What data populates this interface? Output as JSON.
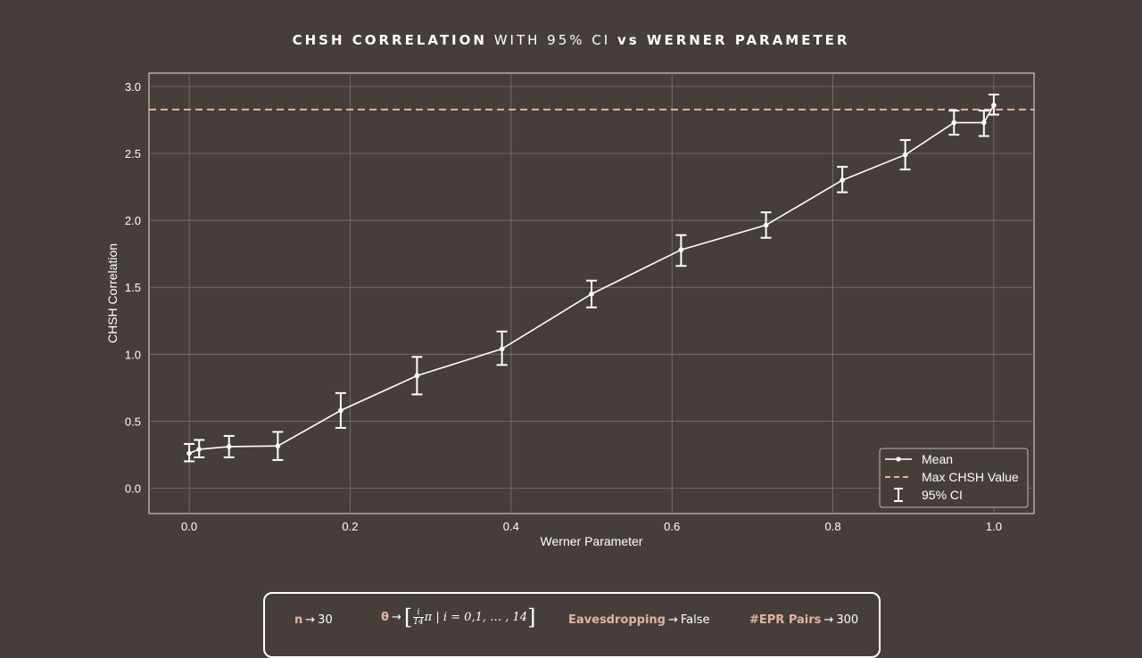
{
  "title": {
    "part1": "CHSH CORRELATION",
    "part2": " WITH 95% CI ",
    "part3": "vs",
    "part4": " WERNER PARAMETER"
  },
  "chart_data": {
    "type": "line",
    "xlabel": "Werner Parameter",
    "ylabel": "CHSH Correlation",
    "xlim": [
      -0.05,
      1.05
    ],
    "ylim": [
      -0.19,
      3.1
    ],
    "xticks": [
      "0.0",
      "0.2",
      "0.4",
      "0.6",
      "0.8",
      "1.0"
    ],
    "xtick_values": [
      0.0,
      0.2,
      0.4,
      0.6,
      0.8,
      1.0
    ],
    "yticks": [
      "0.0",
      "0.5",
      "1.0",
      "1.5",
      "2.0",
      "2.5",
      "3.0"
    ],
    "ytick_values": [
      0.0,
      0.5,
      1.0,
      1.5,
      2.0,
      2.5,
      3.0
    ],
    "grid": true,
    "legend_position": "bottom-right",
    "legend": [
      "Mean",
      "Max CHSH Value",
      "95% CI"
    ],
    "series": [
      {
        "name": "Mean",
        "color": "#ffffff",
        "x": [
          0.0,
          0.0123,
          0.0495,
          0.1101,
          0.1883,
          0.2831,
          0.3887,
          0.5,
          0.6113,
          0.7169,
          0.8117,
          0.8899,
          0.9505,
          0.9877,
          1.0
        ],
        "y": [
          0.26,
          0.29,
          0.31,
          0.315,
          0.58,
          0.84,
          1.04,
          1.45,
          1.78,
          1.965,
          2.3,
          2.49,
          2.73,
          2.73,
          2.86
        ],
        "ci_low": [
          0.2,
          0.23,
          0.23,
          0.21,
          0.45,
          0.7,
          0.92,
          1.35,
          1.66,
          1.87,
          2.21,
          2.38,
          2.64,
          2.63,
          2.79
        ],
        "ci_high": [
          0.33,
          0.36,
          0.39,
          0.42,
          0.71,
          0.98,
          1.17,
          1.55,
          1.89,
          2.06,
          2.4,
          2.6,
          2.82,
          2.82,
          2.94
        ]
      }
    ],
    "reference_line": {
      "name": "Max CHSH Value",
      "y": 2.828,
      "color": "#e2b3a3"
    },
    "ci_name": "95% CI"
  },
  "params": {
    "n_key": "n",
    "n_value": "30",
    "theta_key": "θ",
    "theta_num": "i",
    "theta_den": "14",
    "theta_rest": "π | i = 0,1, … , 14",
    "eaves_key": "Eavesdropping",
    "eaves_value": "False",
    "epr_key": "#EPR Pairs",
    "epr_value": "300",
    "arrow": "→"
  }
}
